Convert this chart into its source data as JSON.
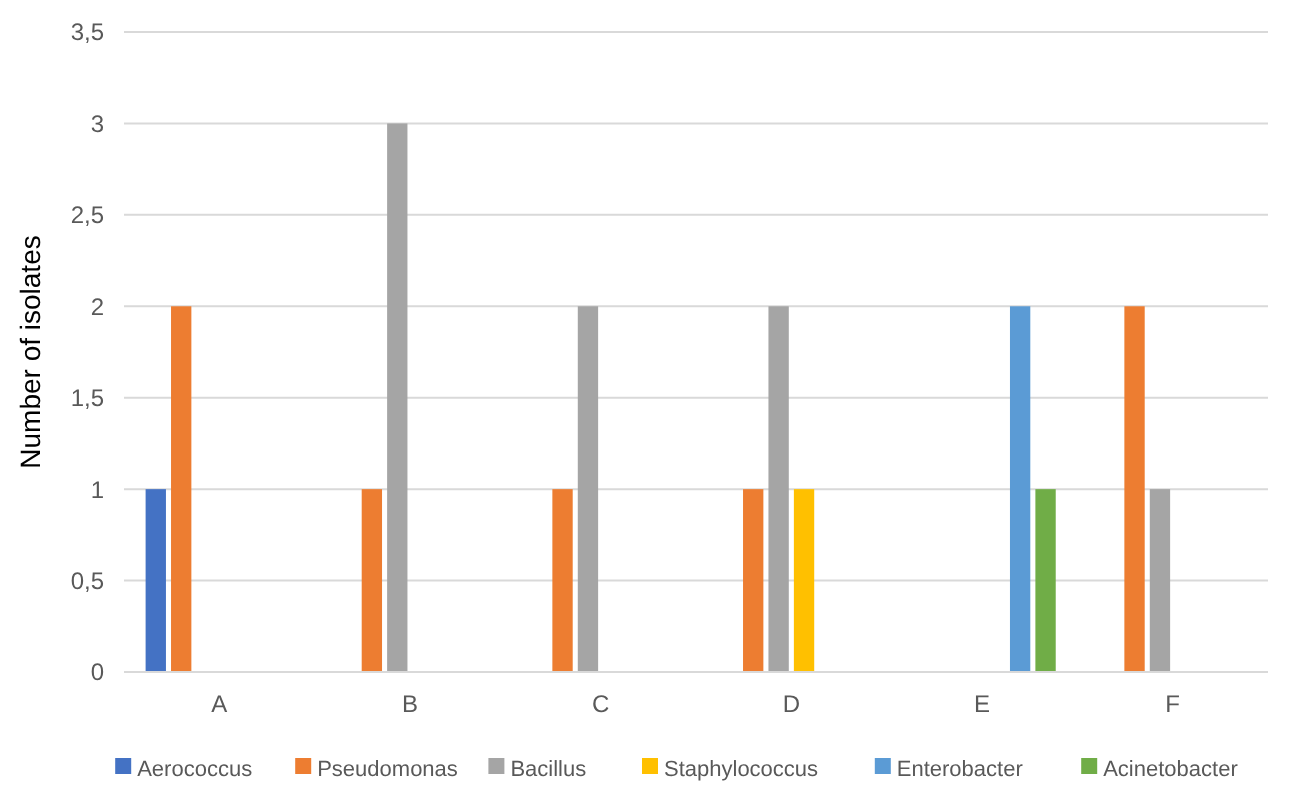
{
  "chart_data": {
    "type": "bar",
    "ylabel": "Number of isolates",
    "categories": [
      "A",
      "B",
      "C",
      "D",
      "E",
      "F"
    ],
    "series": [
      {
        "name": "Aerococcus",
        "color": "#4472c4",
        "values": [
          1,
          0,
          0,
          0,
          0,
          0
        ]
      },
      {
        "name": "Pseudomonas",
        "color": "#ed7d31",
        "values": [
          2,
          1,
          1,
          1,
          0,
          2
        ]
      },
      {
        "name": "Bacillus",
        "color": "#a5a5a5",
        "values": [
          0,
          3,
          2,
          2,
          0,
          1
        ]
      },
      {
        "name": "Staphylococcus",
        "color": "#ffc000",
        "values": [
          0,
          0,
          0,
          1,
          0,
          0
        ]
      },
      {
        "name": "Enterobacter",
        "color": "#5b9bd5",
        "values": [
          0,
          0,
          0,
          0,
          2,
          0
        ]
      },
      {
        "name": "Acinetobacter",
        "color": "#70ad47",
        "values": [
          0,
          0,
          0,
          0,
          1,
          0
        ]
      }
    ],
    "ylim": [
      0,
      3.5
    ],
    "yticks": [
      0,
      {
        "value": 0.5,
        "label": "0,5"
      },
      1,
      {
        "value": 1.5,
        "label": "1,5"
      },
      2,
      {
        "value": 2.5,
        "label": "2,5"
      },
      3,
      {
        "value": 3.5,
        "label": "3,5"
      }
    ],
    "grid": "y",
    "legend": "bottom"
  }
}
